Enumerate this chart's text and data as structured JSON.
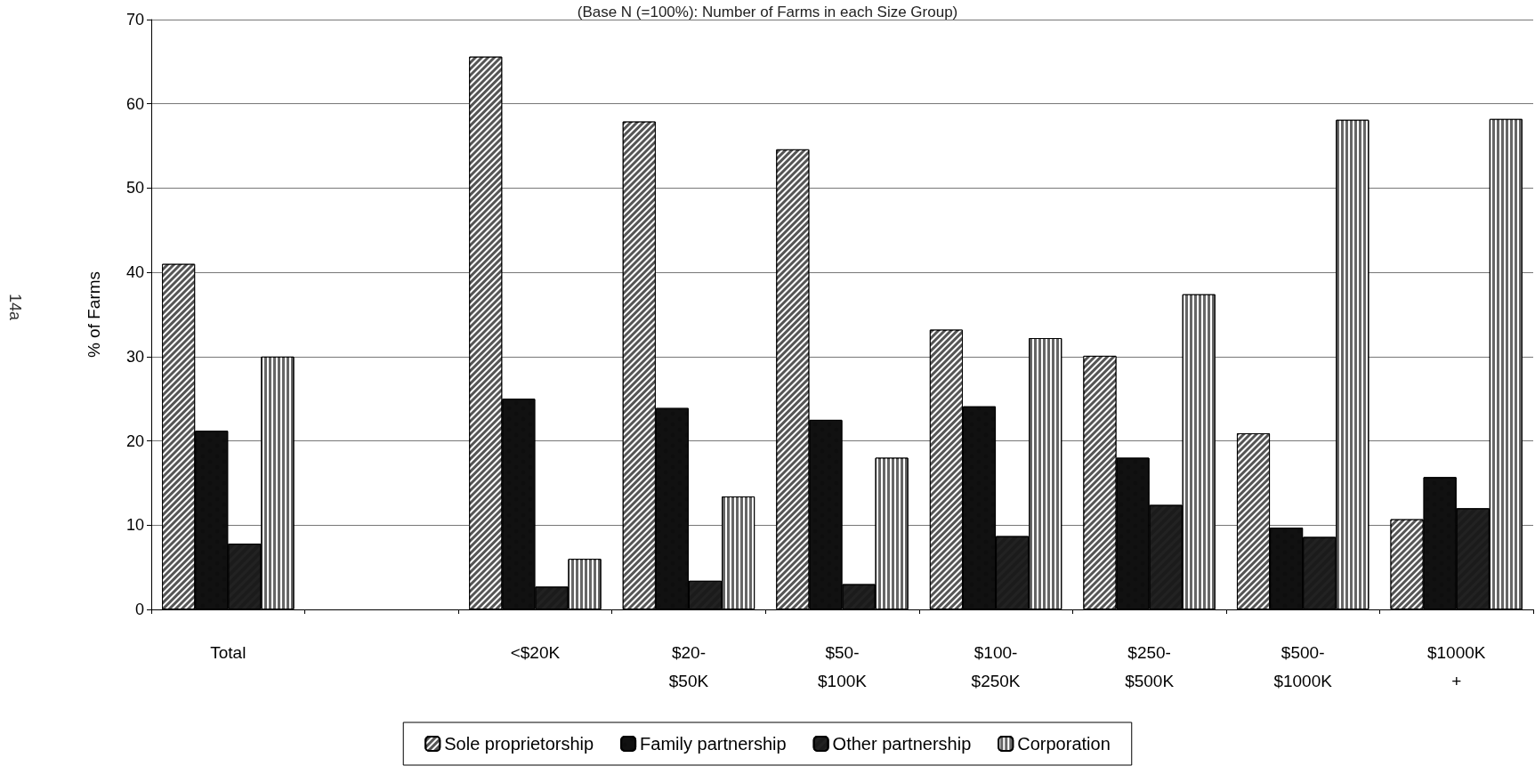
{
  "chart_data": {
    "type": "bar",
    "title": "(Base N (=100%): Number of Farms in each Size Group)",
    "ylabel": "% of Farms",
    "categories": [
      "Total",
      null,
      "<$20K",
      "$20-\n$50K",
      "$50-\n$100K",
      "$100-\n$250K",
      "$250-\n$500K",
      "$500-\n$1000K",
      "$1000K\n+"
    ],
    "series": [
      {
        "name": "Sole proprietorship",
        "color": "#555555",
        "values": [
          41.0,
          null,
          65.6,
          57.9,
          54.6,
          33.2,
          30.1,
          20.9,
          10.7
        ]
      },
      {
        "name": "Family partnership",
        "color": "#111111",
        "values": [
          21.2,
          null,
          25.0,
          23.9,
          22.5,
          24.1,
          18.0,
          9.7,
          15.7
        ]
      },
      {
        "name": "Other partnership",
        "color": "#222222",
        "values": [
          7.8,
          null,
          2.7,
          3.4,
          3.0,
          8.7,
          12.4,
          8.6,
          12.0
        ]
      },
      {
        "name": "Corporation",
        "color": "#666666",
        "values": [
          30.0,
          null,
          6.0,
          13.4,
          18.0,
          32.2,
          37.4,
          58.1,
          58.2
        ]
      }
    ],
    "ylim": [
      0,
      70
    ],
    "yticks": [
      0,
      10,
      20,
      30,
      40,
      50,
      60,
      70
    ],
    "grid": "y",
    "legend": "bottom",
    "annotations": [
      "14a"
    ]
  }
}
